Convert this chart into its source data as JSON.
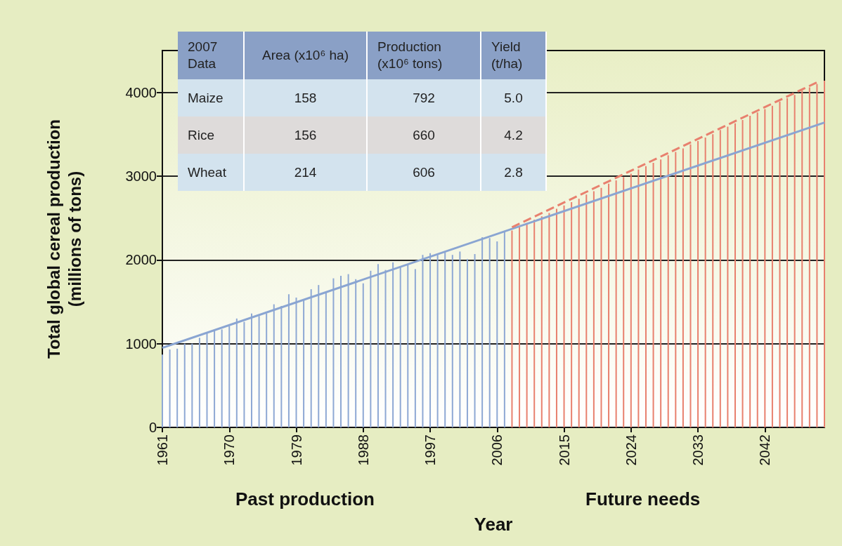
{
  "chart_data": [
    {
      "type": "bar",
      "xlabel": "Year",
      "ylabel": "Total global cereal production\n(millions of tons)",
      "annotations": [
        "Past production",
        "Future needs"
      ],
      "xlim": [
        1961,
        2050
      ],
      "xticks": [
        1961,
        1970,
        1979,
        1988,
        1997,
        2006,
        2015,
        2024,
        2033,
        2042
      ],
      "ylim": [
        0,
        4500
      ],
      "yticks": [
        0,
        1000,
        2000,
        3000,
        4000
      ],
      "grid": "y",
      "series": [
        {
          "type": "bar",
          "color": "#8ea8d4",
          "x": [
            1961,
            1962,
            1963,
            1964,
            1965,
            1966,
            1967,
            1968,
            1969,
            1970,
            1971,
            1972,
            1973,
            1974,
            1975,
            1976,
            1977,
            1978,
            1979,
            1980,
            1981,
            1982,
            1983,
            1984,
            1985,
            1986,
            1987,
            1988,
            1989,
            1990,
            1991,
            1992,
            1993,
            1994,
            1995,
            1996,
            1997,
            1998,
            1999,
            2000,
            2001,
            2002,
            2003,
            2004,
            2005,
            2006,
            2007
          ],
          "values": [
            870,
            930,
            940,
            1000,
            1000,
            1070,
            1130,
            1160,
            1170,
            1210,
            1300,
            1260,
            1360,
            1330,
            1360,
            1470,
            1450,
            1590,
            1550,
            1530,
            1650,
            1700,
            1610,
            1780,
            1810,
            1830,
            1770,
            1720,
            1870,
            1950,
            1880,
            1970,
            1920,
            1940,
            1890,
            2060,
            2080,
            2060,
            2090,
            2060,
            2100,
            2010,
            2070,
            2270,
            2260,
            2220,
            2340
          ]
        },
        {
          "type": "bar",
          "color": "#e8806e",
          "x": [
            2008,
            2009,
            2010,
            2011,
            2012,
            2013,
            2014,
            2015,
            2016,
            2017,
            2018,
            2019,
            2020,
            2021,
            2022,
            2023,
            2024,
            2025,
            2026,
            2027,
            2028,
            2029,
            2030,
            2031,
            2032,
            2033,
            2034,
            2035,
            2036,
            2037,
            2038,
            2039,
            2040,
            2041,
            2042,
            2043,
            2044,
            2045,
            2046,
            2047,
            2048,
            2049,
            2050
          ],
          "values": [
            2350,
            2390,
            2440,
            2480,
            2520,
            2560,
            2610,
            2650,
            2690,
            2730,
            2780,
            2820,
            2860,
            2910,
            2950,
            2990,
            3030,
            3080,
            3120,
            3160,
            3200,
            3250,
            3290,
            3330,
            3380,
            3420,
            3460,
            3500,
            3550,
            3590,
            3630,
            3670,
            3720,
            3760,
            3800,
            3840,
            3890,
            3930,
            3970,
            4020,
            4060,
            4100,
            4140
          ]
        },
        {
          "type": "line",
          "color": "#8aa5d2",
          "line_style": "solid",
          "x": [
            1961,
            2050
          ],
          "values": [
            950,
            3640
          ]
        },
        {
          "type": "line",
          "color": "#e8806e",
          "line_style": "dashed",
          "x": [
            2008,
            2049
          ],
          "values": [
            2390,
            4120
          ]
        }
      ]
    },
    {
      "type": "other",
      "categories": [
        "2007 Data",
        "Area (x10⁶ ha)",
        "Production (x10⁶ tons)",
        "Yield (t/ha)"
      ],
      "y_categories": [
        "Maize",
        "Rice",
        "Wheat"
      ],
      "cells": [
        [
          "158",
          "792",
          "5.0"
        ],
        [
          "156",
          "660",
          "4.2"
        ],
        [
          "214",
          "606",
          "2.8"
        ]
      ]
    }
  ]
}
